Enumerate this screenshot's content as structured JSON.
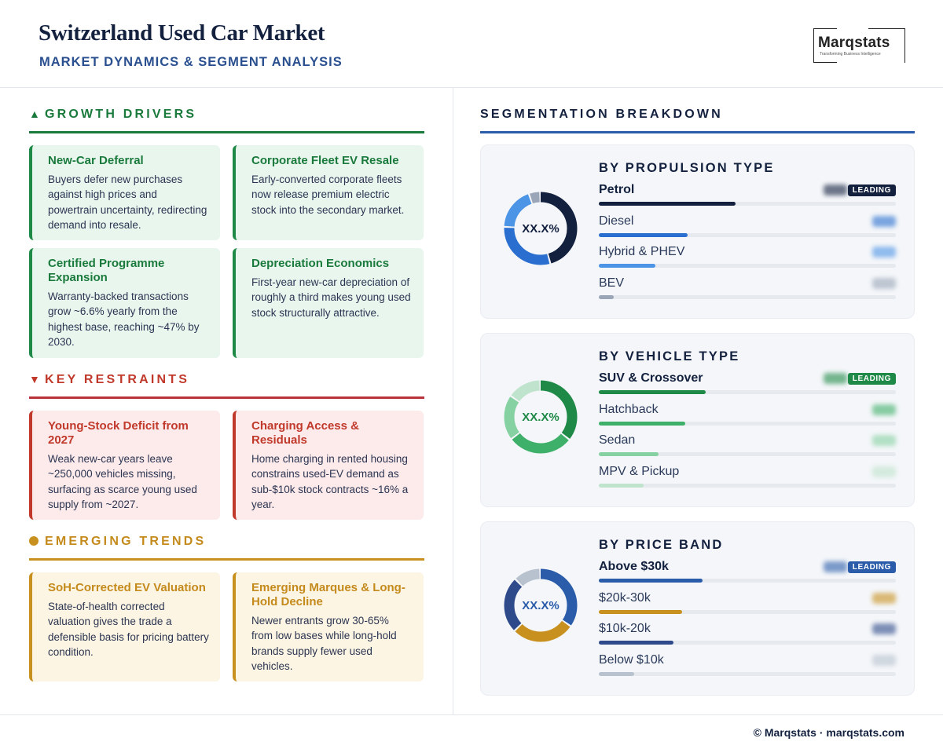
{
  "header": {
    "title": "Switzerland Used Car Market",
    "subtitle": "MARKET DYNAMICS & SEGMENT ANALYSIS",
    "logo_name": "Marqstats",
    "logo_tagline": "Transforming Business Intelligence"
  },
  "drivers": {
    "heading": "GROWTH DRIVERS",
    "icon": "triangle-up-icon",
    "color": "#1a7a3c",
    "cards": [
      {
        "title": "New-Car Deferral",
        "text": "Buyers defer new purchases against high prices and powertrain uncertainty, redirecting demand into resale."
      },
      {
        "title": "Corporate Fleet EV Resale",
        "text": "Early-converted corporate fleets now release premium electric stock into the secondary market."
      },
      {
        "title": "Certified Programme Expansion",
        "text": "Warranty-backed transactions grow ~6.6% yearly from the highest base, reaching ~47% by 2030."
      },
      {
        "title": "Depreciation Economics",
        "text": "First-year new-car depreciation of roughly a third makes young used stock structurally attractive."
      }
    ]
  },
  "restraints": {
    "heading": "KEY RESTRAINTS",
    "icon": "triangle-down-icon",
    "color": "#c0392b",
    "cards": [
      {
        "title": "Young-Stock Deficit from 2027",
        "text": "Weak new-car years leave ~250,000 vehicles missing, surfacing as scarce young used supply from ~2027."
      },
      {
        "title": "Charging Access & Residuals",
        "text": "Home charging in rented housing constrains used-EV demand as sub-$10k stock contracts ~16% a year."
      }
    ]
  },
  "trends": {
    "heading": "EMERGING TRENDS",
    "icon": "circle-icon",
    "color": "#c48a1c",
    "cards": [
      {
        "title": "SoH-Corrected EV Valuation",
        "text": "State-of-health corrected valuation gives the trade a defensible basis for pricing battery condition."
      },
      {
        "title": "Emerging Marques & Long-Hold Decline",
        "text": "Newer entrants grow 30-65% from low bases while long-hold brands supply fewer used vehicles."
      }
    ]
  },
  "segmentation": {
    "heading": "SEGMENTATION BREAKDOWN",
    "badge": "LEADING",
    "panels": [
      {
        "title": "BY PROPULSION TYPE",
        "center": "XX.X%",
        "center_color": "#13213f",
        "rows": [
          {
            "label": "Petrol",
            "share": 0.46,
            "color": "#13213f",
            "leading": true
          },
          {
            "label": "Diesel",
            "share": 0.3,
            "color": "#2a6fcf",
            "leading": false
          },
          {
            "label": "Hybrid & PHEV",
            "share": 0.19,
            "color": "#4c94e6",
            "leading": false
          },
          {
            "label": "BEV",
            "share": 0.05,
            "color": "#9aa6b8",
            "leading": false
          }
        ]
      },
      {
        "title": "BY VEHICLE TYPE",
        "center": "XX.X%",
        "center_color": "#1f8a47",
        "rows": [
          {
            "label": "SUV & Crossover",
            "share": 0.36,
            "color": "#1f8a47",
            "leading": true
          },
          {
            "label": "Hatchback",
            "share": 0.29,
            "color": "#3fb06a",
            "leading": false
          },
          {
            "label": "Sedan",
            "share": 0.2,
            "color": "#86d1a2",
            "leading": false
          },
          {
            "label": "MPV & Pickup",
            "share": 0.15,
            "color": "#bfe3cc",
            "leading": false
          }
        ]
      },
      {
        "title": "BY PRICE BAND",
        "center": "XX.X%",
        "center_color": "#2a5caa",
        "rows": [
          {
            "label": "Above $30k",
            "share": 0.35,
            "color": "#2a5caa",
            "leading": true
          },
          {
            "label": "$20k-30k",
            "share": 0.28,
            "color": "#c8911f",
            "leading": false
          },
          {
            "label": "$10k-20k",
            "share": 0.25,
            "color": "#2f4a8a",
            "leading": false
          },
          {
            "label": "Below $10k",
            "share": 0.12,
            "color": "#b8c2cf",
            "leading": false
          }
        ]
      }
    ]
  },
  "footer": {
    "text": "© Marqstats · marqstats.com"
  }
}
